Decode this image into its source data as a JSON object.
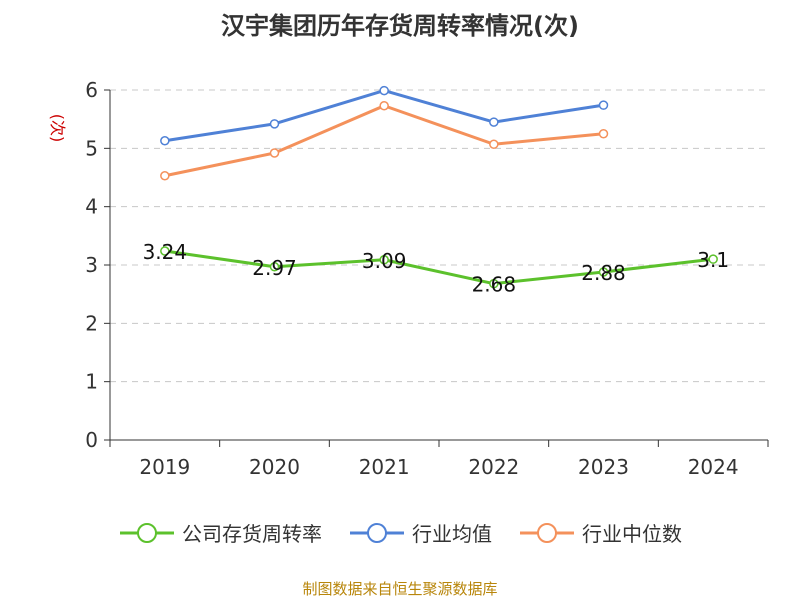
{
  "chart_data": {
    "type": "line",
    "title": "汉宇集团历年存货周转率情况(次)",
    "ylabel": "(次)",
    "xlabel": "",
    "categories": [
      "2019",
      "2020",
      "2021",
      "2022",
      "2023",
      "2024"
    ],
    "ylim": [
      0,
      6
    ],
    "yticks": [
      "0",
      "1",
      "2",
      "3",
      "4",
      "5",
      "6"
    ],
    "grid": true,
    "legend_position": "bottom",
    "series": [
      {
        "name": "公司存货周转率",
        "color": "#5cc12c",
        "values": [
          3.24,
          2.97,
          3.09,
          2.68,
          2.88,
          3.1
        ],
        "labels": [
          "3.24",
          "2.97",
          "3.09",
          "2.68",
          "2.88",
          "3.1"
        ]
      },
      {
        "name": "行业均值",
        "color": "#4f81d6",
        "values": [
          5.13,
          5.42,
          5.99,
          5.45,
          5.74,
          null
        ]
      },
      {
        "name": "行业中位数",
        "color": "#f4915b",
        "values": [
          4.53,
          4.92,
          5.73,
          5.07,
          5.25,
          null
        ]
      }
    ],
    "source": "制图数据来自恒生聚源数据库"
  }
}
